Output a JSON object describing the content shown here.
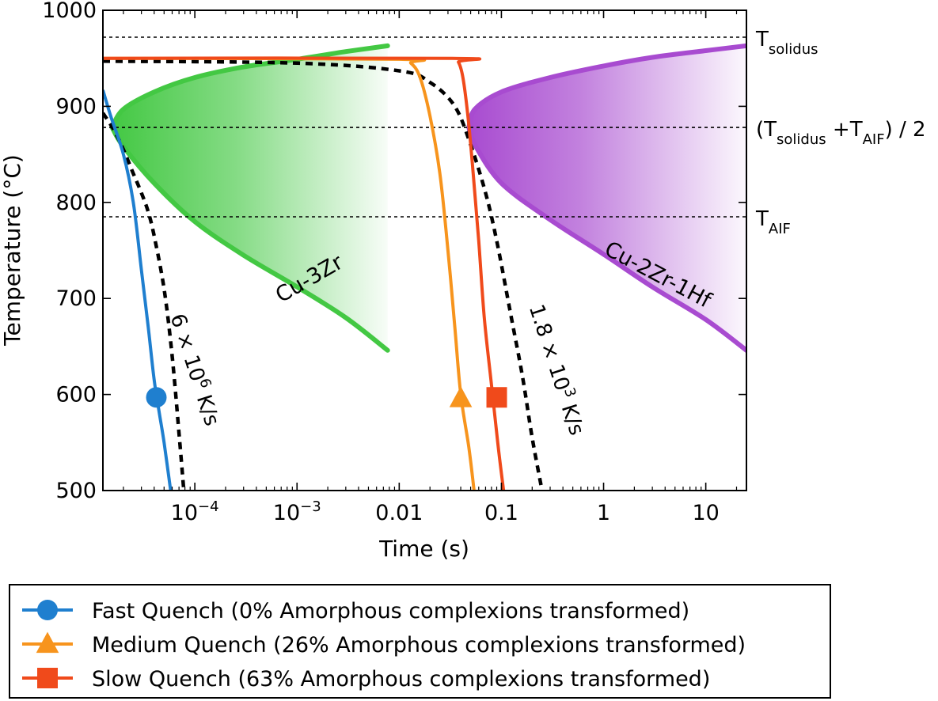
{
  "colors": {
    "fast": "#1f7fcf",
    "medium": "#f7941d",
    "slow": "#f04a1b",
    "cu3zr": "#43c843",
    "cu2zr1hf": "#a84bd0",
    "dashed": "#000000"
  },
  "chart_data": {
    "type": "line",
    "xlabel": "Time (s)",
    "ylabel": "Temperature (°C)",
    "xscale": "log",
    "xlim": [
      1.26e-05,
      25
    ],
    "ylim": [
      500,
      1000
    ],
    "grid": false,
    "legend_position": "bottom",
    "x_ticks": [
      {
        "value": 0.0001,
        "label": "10",
        "sup": "−4"
      },
      {
        "value": 0.001,
        "label": "10",
        "sup": "−3"
      },
      {
        "value": 0.01,
        "label": "0.01",
        "sup": ""
      },
      {
        "value": 0.1,
        "label": "0.1",
        "sup": ""
      },
      {
        "value": 1,
        "label": "1",
        "sup": ""
      },
      {
        "value": 10,
        "label": "10",
        "sup": ""
      }
    ],
    "y_ticks": [
      500,
      600,
      700,
      800,
      900,
      1000
    ],
    "reference_lines": [
      {
        "y": 972,
        "label_main": "T",
        "label_sub": "solidus",
        "label_tail": ""
      },
      {
        "y": 878,
        "label_main": "(T",
        "label_sub": "solidus",
        "label_mid": " +T",
        "label_sub2": "AIF",
        "label_tail": ") / 2"
      },
      {
        "y": 785,
        "label_main": "T",
        "label_sub": "AIF",
        "label_tail": ""
      }
    ],
    "transformation_regions": [
      {
        "name": "Cu-3Zr",
        "color_key": "cu3zr",
        "nose": {
          "t": 1.55e-05,
          "T": 878
        },
        "upper": [
          {
            "t": 1.55e-05,
            "T": 878
          },
          {
            "t": 2e-05,
            "T": 897
          },
          {
            "t": 4e-05,
            "T": 915
          },
          {
            "t": 0.0001,
            "T": 930
          },
          {
            "t": 0.0003,
            "T": 941
          },
          {
            "t": 0.001,
            "T": 949
          },
          {
            "t": 0.003,
            "T": 957
          },
          {
            "t": 0.0077,
            "T": 963
          }
        ],
        "lower": [
          {
            "t": 1.55e-05,
            "T": 878
          },
          {
            "t": 2e-05,
            "T": 858
          },
          {
            "t": 4e-05,
            "T": 820
          },
          {
            "t": 0.0001,
            "T": 780
          },
          {
            "t": 0.0003,
            "T": 745
          },
          {
            "t": 0.001,
            "T": 712
          },
          {
            "t": 0.003,
            "T": 680
          },
          {
            "t": 0.0077,
            "T": 646
          }
        ]
      },
      {
        "name": "Cu-2Zr-1Hf",
        "color_key": "cu2zr1hf",
        "nose": {
          "t": 0.048,
          "T": 878
        },
        "upper": [
          {
            "t": 0.048,
            "T": 878
          },
          {
            "t": 0.055,
            "T": 897
          },
          {
            "t": 0.1,
            "T": 915
          },
          {
            "t": 0.3,
            "T": 930
          },
          {
            "t": 1,
            "T": 942
          },
          {
            "t": 3,
            "T": 951
          },
          {
            "t": 10,
            "T": 958
          },
          {
            "t": 25,
            "T": 963
          }
        ],
        "lower": [
          {
            "t": 0.048,
            "T": 878
          },
          {
            "t": 0.055,
            "T": 860
          },
          {
            "t": 0.1,
            "T": 820
          },
          {
            "t": 0.3,
            "T": 782
          },
          {
            "t": 1,
            "T": 746
          },
          {
            "t": 3,
            "T": 712
          },
          {
            "t": 10,
            "T": 678
          },
          {
            "t": 25,
            "T": 646
          }
        ]
      }
    ],
    "critical_rate_curves": [
      {
        "label_text": "6 × 10",
        "label_sup": "6",
        "label_unit": " K/s",
        "points": [
          {
            "t": 1.26e-05,
            "T": 893
          },
          {
            "t": 1.6e-05,
            "T": 876
          },
          {
            "t": 2e-05,
            "T": 855
          },
          {
            "t": 2.5e-05,
            "T": 830
          },
          {
            "t": 3e-05,
            "T": 810
          },
          {
            "t": 3.5e-05,
            "T": 790
          },
          {
            "t": 4e-05,
            "T": 765
          },
          {
            "t": 5e-05,
            "T": 710
          },
          {
            "t": 6e-05,
            "T": 640
          },
          {
            "t": 7e-05,
            "T": 560
          },
          {
            "t": 7.8e-05,
            "T": 500
          }
        ]
      },
      {
        "label_text": "1.8 × 10",
        "label_sup": "3",
        "label_unit": " K/s",
        "points": [
          {
            "t": 1.26e-05,
            "T": 947
          },
          {
            "t": 0.001,
            "T": 945
          },
          {
            "t": 0.01,
            "T": 937
          },
          {
            "t": 0.02,
            "T": 925
          },
          {
            "t": 0.035,
            "T": 900
          },
          {
            "t": 0.05,
            "T": 860
          },
          {
            "t": 0.07,
            "T": 810
          },
          {
            "t": 0.09,
            "T": 760
          },
          {
            "t": 0.12,
            "T": 690
          },
          {
            "t": 0.16,
            "T": 620
          },
          {
            "t": 0.2,
            "T": 555
          },
          {
            "t": 0.25,
            "T": 500
          }
        ]
      }
    ],
    "series": [
      {
        "name": "Fast Quench (0% Amorphous complexions transformed)",
        "color_key": "fast",
        "marker": "circle",
        "marker_point": {
          "t": 4.2e-05,
          "T": 597
        },
        "points": [
          {
            "t": 1.26e-05,
            "T": 917
          },
          {
            "t": 1.5e-05,
            "T": 890
          },
          {
            "t": 2e-05,
            "T": 850
          },
          {
            "t": 2.5e-05,
            "T": 800
          },
          {
            "t": 3e-05,
            "T": 730
          },
          {
            "t": 3.5e-05,
            "T": 670
          },
          {
            "t": 4e-05,
            "T": 615
          },
          {
            "t": 4.5e-05,
            "T": 580
          },
          {
            "t": 5e-05,
            "T": 550
          },
          {
            "t": 5.8e-05,
            "T": 500
          }
        ]
      },
      {
        "name": "Medium Quench (26% Amorphous complexions transformed)",
        "color_key": "medium",
        "marker": "triangle",
        "marker_point": {
          "t": 0.04,
          "T": 596
        },
        "points": [
          {
            "t": 1.26e-05,
            "T": 950
          },
          {
            "t": 0.01,
            "T": 949
          },
          {
            "t": 0.013,
            "T": 945
          },
          {
            "t": 0.016,
            "T": 930
          },
          {
            "t": 0.02,
            "T": 890
          },
          {
            "t": 0.025,
            "T": 830
          },
          {
            "t": 0.03,
            "T": 750
          },
          {
            "t": 0.035,
            "T": 670
          },
          {
            "t": 0.04,
            "T": 600
          },
          {
            "t": 0.048,
            "T": 545
          },
          {
            "t": 0.054,
            "T": 500
          }
        ]
      },
      {
        "name": "Slow Quench (63% Amorphous complexions transformed)",
        "color_key": "slow",
        "marker": "square",
        "marker_point": {
          "t": 0.09,
          "T": 597
        },
        "points": [
          {
            "t": 1.26e-05,
            "T": 950
          },
          {
            "t": 0.033,
            "T": 950
          },
          {
            "t": 0.038,
            "T": 946
          },
          {
            "t": 0.042,
            "T": 930
          },
          {
            "t": 0.047,
            "T": 890
          },
          {
            "t": 0.053,
            "T": 830
          },
          {
            "t": 0.06,
            "T": 760
          },
          {
            "t": 0.068,
            "T": 680
          },
          {
            "t": 0.08,
            "T": 610
          },
          {
            "t": 0.092,
            "T": 550
          },
          {
            "t": 0.105,
            "T": 500
          }
        ]
      }
    ]
  }
}
